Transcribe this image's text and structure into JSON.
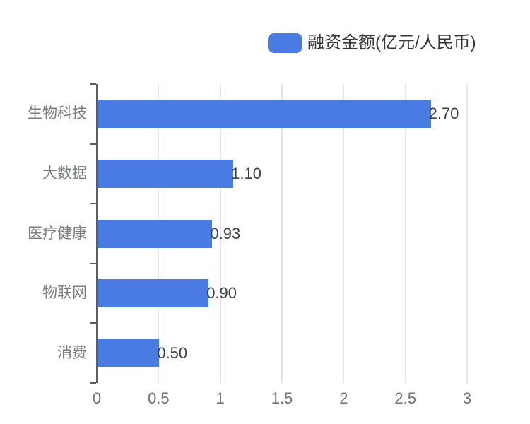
{
  "chart_data": {
    "type": "bar",
    "orientation": "horizontal",
    "legend": "融资金额(亿元/人民币)",
    "legend_position": "top-right",
    "categories": [
      "生物科技",
      "大数据",
      "医疗健康",
      "物联网",
      "消费"
    ],
    "values": [
      2.7,
      1.1,
      0.93,
      0.9,
      0.5
    ],
    "value_labels": [
      "2.70",
      "1.10",
      "0.93",
      "0.90",
      "0.50"
    ],
    "x_tick_values": [
      0,
      0.5,
      1,
      1.5,
      2,
      2.5,
      3
    ],
    "x_tick_labels": [
      "0",
      "0.5",
      "1",
      "1.5",
      "2",
      "2.5",
      "3"
    ],
    "xlim": [
      0,
      3
    ],
    "grid": true,
    "colors": {
      "bar": "#4A7BE2",
      "axis": "#5A5E63",
      "grid": "#E4E5E7",
      "category_label": "#787B7F",
      "x_tick_label": "#6F7276",
      "value_label": "#3C3F43",
      "legend_text": "#343639",
      "background": "#FFFFFF"
    }
  }
}
